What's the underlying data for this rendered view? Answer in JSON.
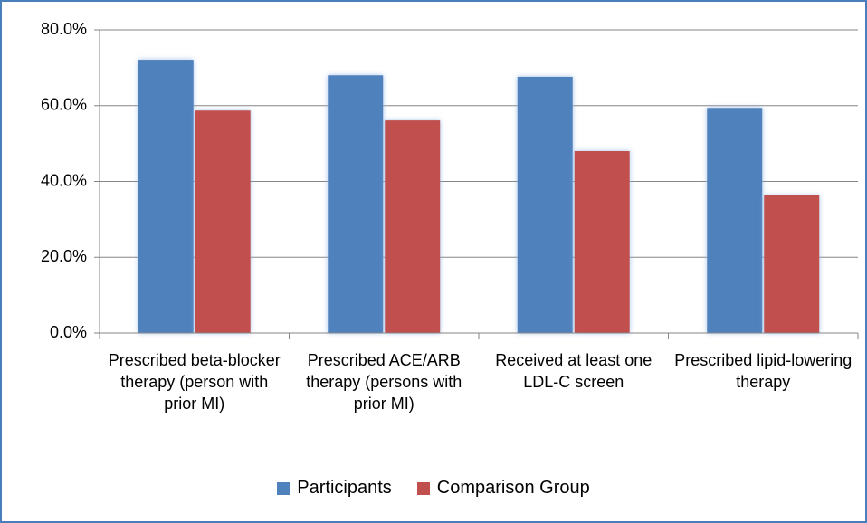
{
  "chart_data": {
    "type": "bar",
    "categories": [
      "Prescribed beta-blocker therapy (person with prior MI)",
      "Prescribed ACE/ARB therapy (persons with prior MI)",
      "Received at least one LDL-C screen",
      "Prescribed lipid-lowering therapy"
    ],
    "series": [
      {
        "name": "Participants",
        "color": "#4f81bd",
        "values": [
          72.1,
          68.0,
          67.6,
          59.4
        ]
      },
      {
        "name": "Comparison Group",
        "color": "#c0504d",
        "values": [
          58.7,
          56.1,
          48.0,
          36.3
        ]
      }
    ],
    "ylim": [
      0,
      80
    ],
    "yticks": [
      {
        "value": 0,
        "label": "0.0%"
      },
      {
        "value": 20,
        "label": "20.0%"
      },
      {
        "value": 40,
        "label": "40.0%"
      },
      {
        "value": 60,
        "label": "60.0%"
      },
      {
        "value": 80,
        "label": "80.0%"
      }
    ],
    "grid": true,
    "legend": "bottom"
  }
}
